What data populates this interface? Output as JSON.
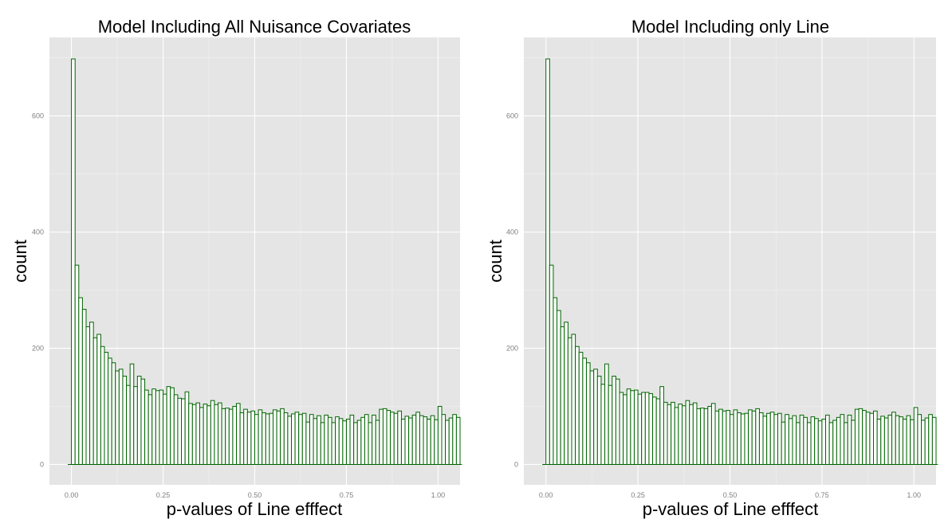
{
  "colors": {
    "panel_background": "#E5E5E5",
    "grid_major": "#FFFFFF",
    "grid_minor": "#F2F2F2",
    "bar_outline": "#006400",
    "bar_fill": "#FFFFFF"
  },
  "chart_data": [
    {
      "type": "histogram",
      "title": "Model Including All Nuisance Covariates",
      "xlabel": "p-values of Line efffect",
      "ylabel": "count",
      "xlim": [
        -0.06,
        1.06
      ],
      "ylim": [
        -35,
        735
      ],
      "x_ticks": [
        0.0,
        0.25,
        0.5,
        0.75,
        1.0
      ],
      "x_tick_labels": [
        "0.00",
        "0.25",
        "0.50",
        "0.75",
        "1.00"
      ],
      "y_ticks": [
        0,
        200,
        400,
        600
      ],
      "y_tick_labels": [
        "0",
        "200",
        "400",
        "600"
      ],
      "binwidth": 0.01,
      "bin_start": 0.0,
      "grid": true,
      "counts": [
        698,
        343,
        287,
        267,
        237,
        245,
        218,
        224,
        203,
        193,
        183,
        175,
        161,
        164,
        152,
        136,
        173,
        134,
        152,
        147,
        128,
        120,
        130,
        127,
        128,
        121,
        134,
        132,
        120,
        114,
        113,
        125,
        105,
        103,
        106,
        98,
        104,
        101,
        110,
        103,
        106,
        96,
        97,
        95,
        100,
        105,
        89,
        95,
        90,
        92,
        86,
        94,
        89,
        87,
        88,
        94,
        92,
        96,
        89,
        83,
        87,
        90,
        86,
        88,
        73,
        86,
        79,
        84,
        72,
        85,
        81,
        72,
        82,
        79,
        75,
        78,
        85,
        72,
        76,
        81,
        86,
        72,
        85,
        76,
        95,
        96,
        93,
        90,
        88,
        92,
        78,
        83,
        80,
        85,
        90,
        84,
        82,
        78,
        84,
        77,
        100,
        86,
        76,
        80,
        86,
        81
      ]
    },
    {
      "type": "histogram",
      "title": "Model Including only Line",
      "xlabel": "p-values of Line efffect",
      "ylabel": "count",
      "xlim": [
        -0.06,
        1.06
      ],
      "ylim": [
        -35,
        735
      ],
      "x_ticks": [
        0.0,
        0.25,
        0.5,
        0.75,
        1.0
      ],
      "x_tick_labels": [
        "0.00",
        "0.25",
        "0.50",
        "0.75",
        "1.00"
      ],
      "y_ticks": [
        0,
        200,
        400,
        600
      ],
      "y_tick_labels": [
        "0",
        "200",
        "400",
        "600"
      ],
      "binwidth": 0.01,
      "bin_start": 0.0,
      "grid": true,
      "counts": [
        698,
        343,
        287,
        265,
        237,
        245,
        218,
        224,
        203,
        193,
        183,
        175,
        161,
        164,
        152,
        138,
        173,
        136,
        152,
        147,
        124,
        120,
        130,
        127,
        128,
        121,
        124,
        124,
        122,
        116,
        113,
        134,
        107,
        103,
        107,
        98,
        104,
        101,
        110,
        103,
        106,
        96,
        97,
        96,
        100,
        105,
        92,
        95,
        92,
        93,
        86,
        94,
        89,
        87,
        88,
        94,
        92,
        96,
        89,
        83,
        88,
        90,
        86,
        88,
        73,
        86,
        79,
        84,
        72,
        85,
        81,
        72,
        82,
        79,
        75,
        78,
        85,
        72,
        76,
        81,
        86,
        72,
        85,
        76,
        95,
        96,
        93,
        90,
        88,
        92,
        78,
        83,
        80,
        85,
        90,
        84,
        82,
        78,
        84,
        77,
        98,
        86,
        76,
        80,
        86,
        81
      ]
    }
  ]
}
